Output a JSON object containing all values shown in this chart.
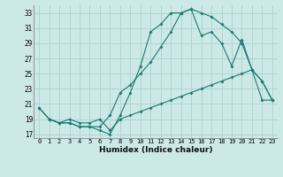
{
  "title": "",
  "xlabel": "Humidex (Indice chaleur)",
  "ylabel": "",
  "background_color": "#cce9e7",
  "grid_color": "#b0d5d2",
  "line_color": "#1a7a72",
  "xlim": [
    -0.5,
    23.5
  ],
  "ylim": [
    16.5,
    34.0
  ],
  "xticks": [
    0,
    1,
    2,
    3,
    4,
    5,
    6,
    7,
    8,
    9,
    10,
    11,
    12,
    13,
    14,
    15,
    16,
    17,
    18,
    19,
    20,
    21,
    22,
    23
  ],
  "yticks": [
    17,
    19,
    21,
    23,
    25,
    27,
    29,
    31,
    33
  ],
  "line1_x": [
    0,
    1,
    2,
    3,
    4,
    5,
    6,
    7,
    8,
    9,
    10,
    11,
    12,
    13,
    14,
    15,
    16,
    17,
    18,
    19,
    20,
    21,
    22,
    23
  ],
  "line1_y": [
    20.5,
    19.0,
    18.5,
    19.0,
    18.5,
    18.5,
    19.0,
    17.5,
    19.0,
    19.5,
    20.0,
    20.5,
    21.0,
    21.5,
    22.0,
    22.5,
    23.0,
    23.5,
    24.0,
    24.5,
    25.0,
    25.5,
    21.5,
    21.5
  ],
  "line2_x": [
    0,
    1,
    2,
    3,
    4,
    5,
    6,
    7,
    8,
    9,
    10,
    11,
    12,
    13,
    14,
    15,
    16,
    17,
    18,
    19,
    20,
    21,
    22,
    23
  ],
  "line2_y": [
    20.5,
    19.0,
    18.5,
    18.5,
    18.0,
    18.0,
    17.5,
    17.0,
    19.5,
    22.5,
    26.0,
    30.5,
    31.5,
    33.0,
    33.0,
    33.5,
    33.0,
    32.5,
    31.5,
    30.5,
    29.0,
    25.5,
    24.0,
    21.5
  ],
  "line3_x": [
    1,
    2,
    3,
    4,
    5,
    6,
    7,
    8,
    9,
    10,
    11,
    12,
    13,
    14,
    15,
    16,
    17,
    18,
    19,
    20,
    21,
    22,
    23
  ],
  "line3_y": [
    19.0,
    18.5,
    18.5,
    18.0,
    18.0,
    18.0,
    19.5,
    22.5,
    23.5,
    25.0,
    26.5,
    28.5,
    30.5,
    33.0,
    33.5,
    30.0,
    30.5,
    29.0,
    26.0,
    29.5,
    25.5,
    24.0,
    21.5
  ]
}
